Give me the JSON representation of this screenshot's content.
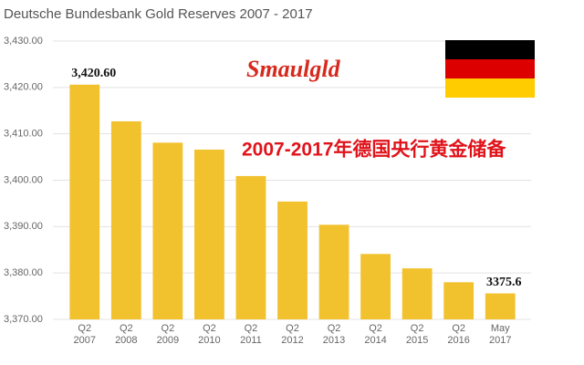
{
  "chart_data": {
    "type": "bar",
    "title": "Deutsche Bundesbank Gold Reserves 2007 - 2017",
    "annotation": "2007-2017年德国央行黄金储备",
    "logo": "Smaulgld",
    "categories": [
      "Q2 2007",
      "Q2 2008",
      "Q2 2009",
      "Q2 2010",
      "Q2 2011",
      "Q2 2012",
      "Q2 2013",
      "Q2 2014",
      "Q2 2015",
      "Q2 2016",
      "May 2017"
    ],
    "values": [
      3420.6,
      3412.7,
      3408.1,
      3406.6,
      3400.9,
      3395.4,
      3390.4,
      3384.1,
      3381.0,
      3378.0,
      3375.6
    ],
    "value_labels": [
      "3,420.60",
      null,
      null,
      null,
      null,
      null,
      null,
      null,
      null,
      null,
      "3375.6"
    ],
    "color": "#f2c12e",
    "ylim": [
      3370,
      3430
    ],
    "yticks": [
      {
        "value": 3370,
        "label": "3,370.00"
      },
      {
        "value": 3380,
        "label": "3,380.00"
      },
      {
        "value": 3390,
        "label": "3,390.00"
      },
      {
        "value": 3400,
        "label": "3,400.00"
      },
      {
        "value": 3410,
        "label": "3,410.00"
      },
      {
        "value": 3420,
        "label": "3,420.00"
      },
      {
        "value": 3430,
        "label": "3,430.00"
      }
    ],
    "grid": true
  }
}
